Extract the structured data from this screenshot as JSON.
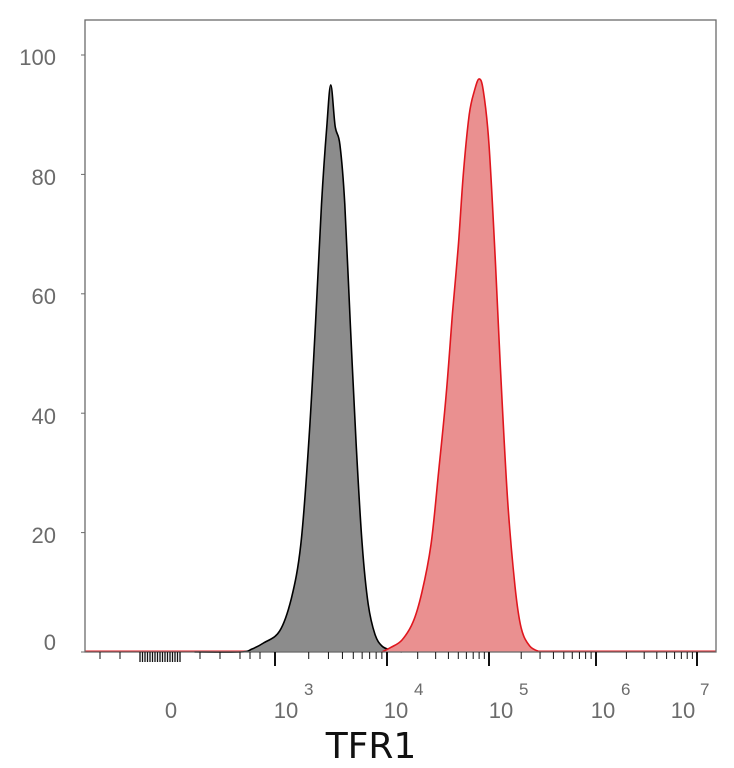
{
  "chart_data": {
    "type": "area",
    "title": "",
    "xlabel": "TFR1",
    "ylabel": "",
    "x_scale": "biexponential",
    "ylim": [
      0,
      100
    ],
    "y_ticks": [
      "0",
      "20",
      "40",
      "60",
      "80",
      "100"
    ],
    "x_ticks": [
      {
        "base": "0",
        "exp": ""
      },
      {
        "base": "10",
        "exp": "3"
      },
      {
        "base": "10",
        "exp": "4"
      },
      {
        "base": "10",
        "exp": "5"
      },
      {
        "base": "10",
        "exp": "6"
      },
      {
        "base": "10",
        "exp": "7"
      }
    ],
    "grid": false,
    "legend": "none",
    "series": [
      {
        "color": "#000000",
        "fill": "#8c8c8c",
        "points": [
          [
            300,
            0
          ],
          [
            700,
            0
          ],
          [
            800,
            0.5
          ],
          [
            900,
            1.5
          ],
          [
            1100,
            3.5
          ],
          [
            1400,
            9
          ],
          [
            1700,
            18
          ],
          [
            2000,
            35
          ],
          [
            2300,
            55
          ],
          [
            2600,
            75
          ],
          [
            2900,
            88
          ],
          [
            3150,
            95
          ],
          [
            3450,
            88
          ],
          [
            3800,
            85
          ],
          [
            4200,
            75
          ],
          [
            4700,
            55
          ],
          [
            5300,
            35
          ],
          [
            6000,
            18
          ],
          [
            6800,
            8
          ],
          [
            7800,
            3
          ],
          [
            9000,
            1
          ],
          [
            11000,
            0.3
          ],
          [
            14000,
            0
          ]
        ]
      },
      {
        "color": "#e0161e",
        "fill": "#ea9090",
        "points": [
          [
            9000,
            0
          ],
          [
            11000,
            0.8
          ],
          [
            14000,
            2
          ],
          [
            18000,
            5
          ],
          [
            22000,
            10
          ],
          [
            27000,
            18
          ],
          [
            32000,
            30
          ],
          [
            38000,
            43
          ],
          [
            44000,
            57
          ],
          [
            50000,
            68
          ],
          [
            56000,
            80
          ],
          [
            64000,
            90
          ],
          [
            72000,
            94
          ],
          [
            80000,
            96
          ],
          [
            88000,
            94
          ],
          [
            100000,
            85
          ],
          [
            115000,
            65
          ],
          [
            130000,
            45
          ],
          [
            150000,
            25
          ],
          [
            175000,
            11
          ],
          [
            200000,
            4
          ],
          [
            240000,
            1
          ],
          [
            300000,
            0
          ]
        ]
      }
    ]
  }
}
